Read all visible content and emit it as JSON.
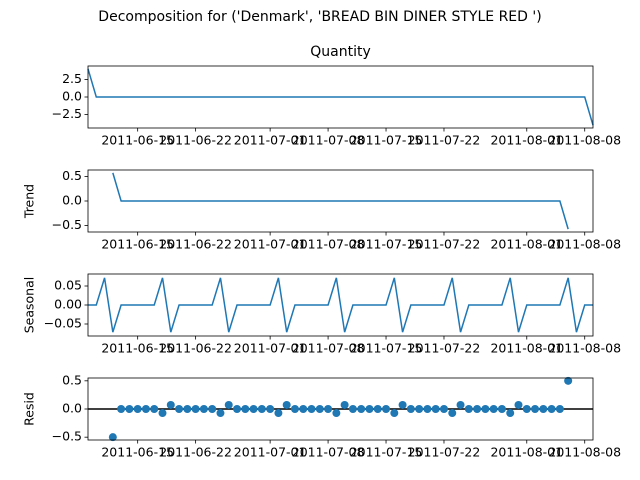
{
  "title": "Decomposition for ('Denmark', 'BREAD BIN DINER STYLE RED ')",
  "chart_data": [
    {
      "type": "line",
      "title": "Quantity",
      "color": "#1f77b4",
      "x": [
        "2011-06-09",
        "2011-06-10",
        "2011-06-11",
        "2011-06-12",
        "2011-06-13",
        "2011-06-14",
        "2011-06-15",
        "2011-06-16",
        "2011-06-17",
        "2011-06-18",
        "2011-06-19",
        "2011-06-20",
        "2011-06-21",
        "2011-06-22",
        "2011-06-23",
        "2011-06-24",
        "2011-06-25",
        "2011-06-26",
        "2011-06-27",
        "2011-06-28",
        "2011-06-29",
        "2011-06-30",
        "2011-07-01",
        "2011-07-02",
        "2011-07-03",
        "2011-07-04",
        "2011-07-05",
        "2011-07-06",
        "2011-07-07",
        "2011-07-08",
        "2011-07-09",
        "2011-07-10",
        "2011-07-11",
        "2011-07-12",
        "2011-07-13",
        "2011-07-14",
        "2011-07-15",
        "2011-07-16",
        "2011-07-17",
        "2011-07-18",
        "2011-07-19",
        "2011-07-20",
        "2011-07-21",
        "2011-07-22",
        "2011-07-23",
        "2011-07-24",
        "2011-07-25",
        "2011-07-26",
        "2011-07-27",
        "2011-07-28",
        "2011-07-29",
        "2011-07-30",
        "2011-07-31",
        "2011-08-01",
        "2011-08-02",
        "2011-08-03",
        "2011-08-04",
        "2011-08-05",
        "2011-08-06",
        "2011-08-07",
        "2011-08-08",
        "2011-08-09"
      ],
      "values": [
        4,
        0,
        0,
        0,
        0,
        0,
        0,
        0,
        0,
        0,
        0,
        0,
        0,
        0,
        0,
        0,
        0,
        0,
        0,
        0,
        0,
        0,
        0,
        0,
        0,
        0,
        0,
        0,
        0,
        0,
        0,
        0,
        0,
        0,
        0,
        0,
        0,
        0,
        0,
        0,
        0,
        0,
        0,
        0,
        0,
        0,
        0,
        0,
        0,
        0,
        0,
        0,
        0,
        0,
        0,
        0,
        0,
        0,
        0,
        0,
        0,
        -4
      ],
      "xlim": [
        "2011-06-09",
        "2011-08-09"
      ],
      "xticks": [
        "2011-06-15",
        "2011-06-22",
        "2011-07-01",
        "2011-07-08",
        "2011-07-15",
        "2011-07-22",
        "2011-08-01",
        "2011-08-08"
      ],
      "ylim": [
        -4.4,
        4.4
      ],
      "yticks": [
        {
          "value": 2.5,
          "label": "2.5"
        },
        {
          "value": 0,
          "label": "0.0"
        },
        {
          "value": -2.5,
          "label": "−2.5"
        }
      ]
    },
    {
      "type": "line",
      "ylabel": "Trend",
      "color": "#1f77b4",
      "x": [
        "2011-06-09",
        "2011-06-10",
        "2011-06-11",
        "2011-06-12",
        "2011-06-13",
        "2011-06-14",
        "2011-06-15",
        "2011-06-16",
        "2011-06-17",
        "2011-06-18",
        "2011-06-19",
        "2011-06-20",
        "2011-06-21",
        "2011-06-22",
        "2011-06-23",
        "2011-06-24",
        "2011-06-25",
        "2011-06-26",
        "2011-06-27",
        "2011-06-28",
        "2011-06-29",
        "2011-06-30",
        "2011-07-01",
        "2011-07-02",
        "2011-07-03",
        "2011-07-04",
        "2011-07-05",
        "2011-07-06",
        "2011-07-07",
        "2011-07-08",
        "2011-07-09",
        "2011-07-10",
        "2011-07-11",
        "2011-07-12",
        "2011-07-13",
        "2011-07-14",
        "2011-07-15",
        "2011-07-16",
        "2011-07-17",
        "2011-07-18",
        "2011-07-19",
        "2011-07-20",
        "2011-07-21",
        "2011-07-22",
        "2011-07-23",
        "2011-07-24",
        "2011-07-25",
        "2011-07-26",
        "2011-07-27",
        "2011-07-28",
        "2011-07-29",
        "2011-07-30",
        "2011-07-31",
        "2011-08-01",
        "2011-08-02",
        "2011-08-03",
        "2011-08-04",
        "2011-08-05",
        "2011-08-06",
        "2011-08-07",
        "2011-08-08",
        "2011-08-09"
      ],
      "values": [
        null,
        null,
        null,
        0.5714,
        0,
        0,
        0,
        0,
        0,
        0,
        0,
        0,
        0,
        0,
        0,
        0,
        0,
        0,
        0,
        0,
        0,
        0,
        0,
        0,
        0,
        0,
        0,
        0,
        0,
        0,
        0,
        0,
        0,
        0,
        0,
        0,
        0,
        0,
        0,
        0,
        0,
        0,
        0,
        0,
        0,
        0,
        0,
        0,
        0,
        0,
        0,
        0,
        0,
        0,
        0,
        0,
        0,
        0,
        -0.5714,
        null,
        null,
        null
      ],
      "xlim": [
        "2011-06-09",
        "2011-08-09"
      ],
      "xticks": [
        "2011-06-15",
        "2011-06-22",
        "2011-07-01",
        "2011-07-08",
        "2011-07-15",
        "2011-07-22",
        "2011-08-01",
        "2011-08-08"
      ],
      "ylim": [
        -0.63,
        0.63
      ],
      "yticks": [
        0.5,
        {
          "value": 0,
          "label": "0.0"
        },
        {
          "value": -0.5,
          "label": "−0.5"
        }
      ]
    },
    {
      "type": "line",
      "ylabel": "Seasonal",
      "color": "#1f77b4",
      "x": [
        "2011-06-09",
        "2011-06-10",
        "2011-06-11",
        "2011-06-12",
        "2011-06-13",
        "2011-06-14",
        "2011-06-15",
        "2011-06-16",
        "2011-06-17",
        "2011-06-18",
        "2011-06-19",
        "2011-06-20",
        "2011-06-21",
        "2011-06-22",
        "2011-06-23",
        "2011-06-24",
        "2011-06-25",
        "2011-06-26",
        "2011-06-27",
        "2011-06-28",
        "2011-06-29",
        "2011-06-30",
        "2011-07-01",
        "2011-07-02",
        "2011-07-03",
        "2011-07-04",
        "2011-07-05",
        "2011-07-06",
        "2011-07-07",
        "2011-07-08",
        "2011-07-09",
        "2011-07-10",
        "2011-07-11",
        "2011-07-12",
        "2011-07-13",
        "2011-07-14",
        "2011-07-15",
        "2011-07-16",
        "2011-07-17",
        "2011-07-18",
        "2011-07-19",
        "2011-07-20",
        "2011-07-21",
        "2011-07-22",
        "2011-07-23",
        "2011-07-24",
        "2011-07-25",
        "2011-07-26",
        "2011-07-27",
        "2011-07-28",
        "2011-07-29",
        "2011-07-30",
        "2011-07-31",
        "2011-08-01",
        "2011-08-02",
        "2011-08-03",
        "2011-08-04",
        "2011-08-05",
        "2011-08-06",
        "2011-08-07",
        "2011-08-08",
        "2011-08-09"
      ],
      "values": [
        0,
        0,
        0.0714,
        -0.0714,
        0,
        0,
        0,
        0,
        0,
        0.0714,
        -0.0714,
        0,
        0,
        0,
        0,
        0,
        0.0714,
        -0.0714,
        0,
        0,
        0,
        0,
        0,
        0.0714,
        -0.0714,
        0,
        0,
        0,
        0,
        0,
        0.0714,
        -0.0714,
        0,
        0,
        0,
        0,
        0,
        0.0714,
        -0.0714,
        0,
        0,
        0,
        0,
        0,
        0.0714,
        -0.0714,
        0,
        0,
        0,
        0,
        0,
        0.0714,
        -0.0714,
        0,
        0,
        0,
        0,
        0,
        0.0714,
        -0.0714,
        0,
        0
      ],
      "xlim": [
        "2011-06-09",
        "2011-08-09"
      ],
      "xticks": [
        "2011-06-15",
        "2011-06-22",
        "2011-07-01",
        "2011-07-08",
        "2011-07-15",
        "2011-07-22",
        "2011-08-01",
        "2011-08-08"
      ],
      "ylim": [
        -0.0816,
        0.0816
      ],
      "yticks": [
        0.05,
        {
          "value": 0,
          "label": "0.00"
        },
        {
          "value": -0.05,
          "label": "−0.05"
        }
      ]
    },
    {
      "type": "scatter",
      "ylabel": "Resid",
      "color": "#1f77b4",
      "x": [
        "2011-06-09",
        "2011-06-10",
        "2011-06-11",
        "2011-06-12",
        "2011-06-13",
        "2011-06-14",
        "2011-06-15",
        "2011-06-16",
        "2011-06-17",
        "2011-06-18",
        "2011-06-19",
        "2011-06-20",
        "2011-06-21",
        "2011-06-22",
        "2011-06-23",
        "2011-06-24",
        "2011-06-25",
        "2011-06-26",
        "2011-06-27",
        "2011-06-28",
        "2011-06-29",
        "2011-06-30",
        "2011-07-01",
        "2011-07-02",
        "2011-07-03",
        "2011-07-04",
        "2011-07-05",
        "2011-07-06",
        "2011-07-07",
        "2011-07-08",
        "2011-07-09",
        "2011-07-10",
        "2011-07-11",
        "2011-07-12",
        "2011-07-13",
        "2011-07-14",
        "2011-07-15",
        "2011-07-16",
        "2011-07-17",
        "2011-07-18",
        "2011-07-19",
        "2011-07-20",
        "2011-07-21",
        "2011-07-22",
        "2011-07-23",
        "2011-07-24",
        "2011-07-25",
        "2011-07-26",
        "2011-07-27",
        "2011-07-28",
        "2011-07-29",
        "2011-07-30",
        "2011-07-31",
        "2011-08-01",
        "2011-08-02",
        "2011-08-03",
        "2011-08-04",
        "2011-08-05",
        "2011-08-06",
        "2011-08-07",
        "2011-08-08",
        "2011-08-09"
      ],
      "values": [
        null,
        null,
        null,
        -0.5,
        0,
        0,
        0,
        0,
        0,
        -0.0714,
        0.0714,
        0,
        0,
        0,
        0,
        0,
        -0.0714,
        0.0714,
        0,
        0,
        0,
        0,
        0,
        -0.0714,
        0.0714,
        0,
        0,
        0,
        0,
        0,
        -0.0714,
        0.0714,
        0,
        0,
        0,
        0,
        0,
        -0.0714,
        0.0714,
        0,
        0,
        0,
        0,
        0,
        -0.0714,
        0.0714,
        0,
        0,
        0,
        0,
        0,
        -0.0714,
        0.0714,
        0,
        0,
        0,
        0,
        0,
        0.5,
        null,
        null,
        null
      ],
      "xlim": [
        "2011-06-09",
        "2011-08-09"
      ],
      "xticks": [
        "2011-06-15",
        "2011-06-22",
        "2011-07-01",
        "2011-07-08",
        "2011-07-15",
        "2011-07-22",
        "2011-08-01",
        "2011-08-08"
      ],
      "ylim": [
        -0.55,
        0.55
      ],
      "yticks": [
        0.5,
        {
          "value": 0,
          "label": "0.0"
        },
        {
          "value": -0.5,
          "label": "−0.5"
        }
      ]
    }
  ]
}
